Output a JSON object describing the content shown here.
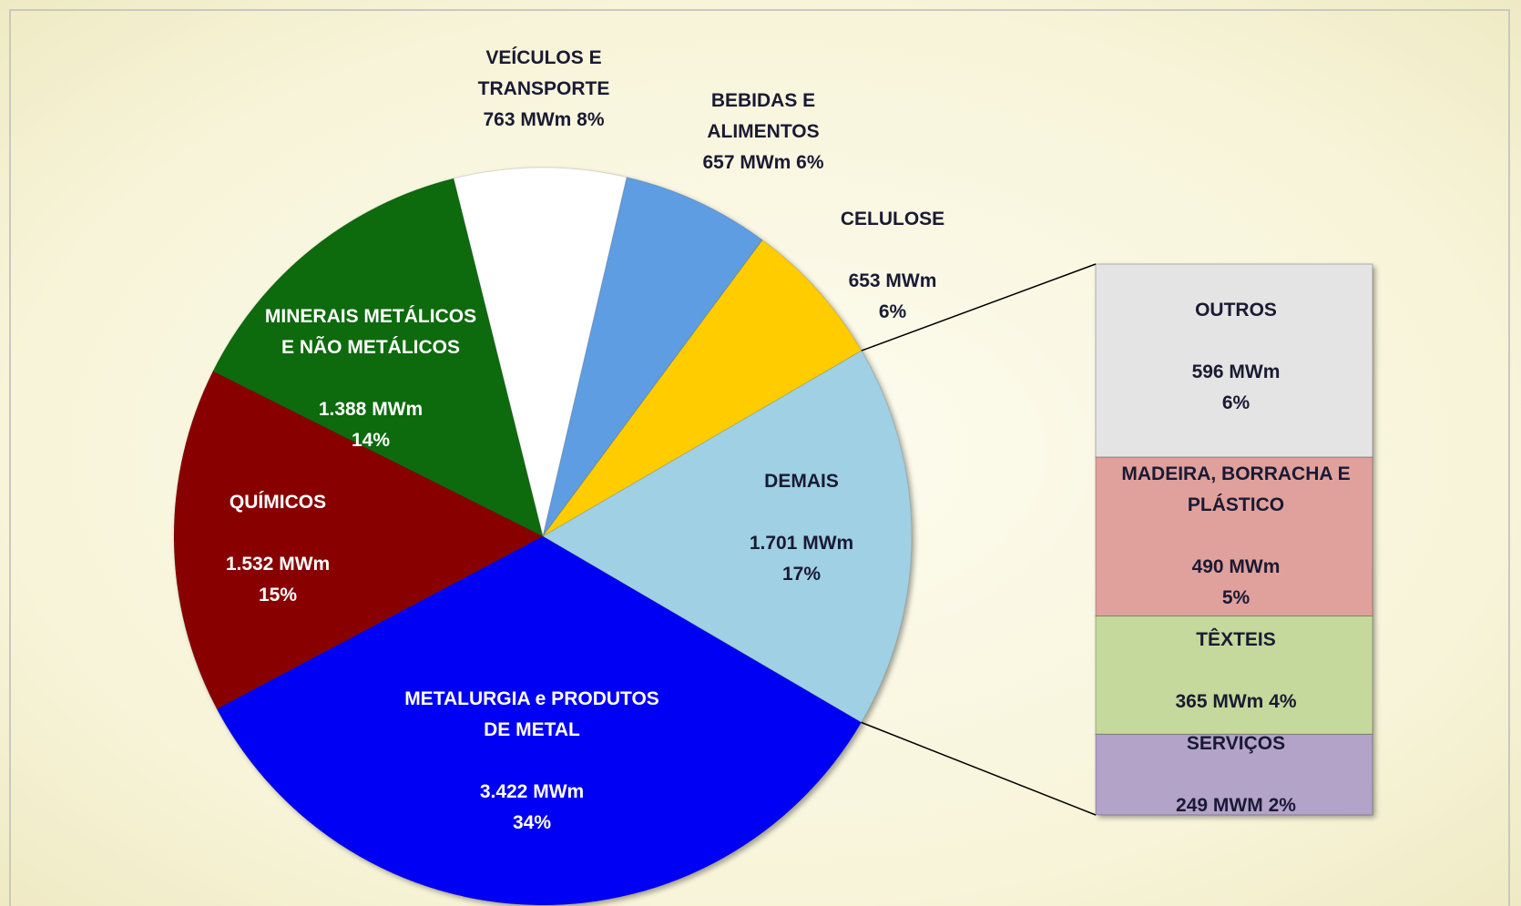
{
  "chart_data": {
    "type": "pie",
    "categories": [
      "VEÍCULOS E TRANSPORTE",
      "BEBIDAS E ALIMENTOS",
      "CELULOSE",
      "DEMAIS",
      "METALURGIA e PRODUTOS DE METAL",
      "QUÍMICOS",
      "MINERAIS METÁLICOS E NÃO METÁLICOS"
    ],
    "values": [
      763,
      657,
      653,
      1701,
      3422,
      1532,
      1388
    ],
    "value_labels": [
      "763 MWm",
      "657 MWm",
      "653 MWm",
      "1.701 MWm",
      "3.422  MWm",
      "1.532 MWm",
      "1.388 MWm"
    ],
    "percents": [
      8,
      6,
      6,
      17,
      34,
      15,
      14
    ],
    "percent_labels": [
      "8%",
      "6%",
      "6%",
      "17%",
      "34%",
      "15%",
      "14%"
    ],
    "colors": [
      "#ffffff",
      "#5f9de2",
      "#ffcc00",
      "#9fd0e3",
      "#0000f4",
      "#880000",
      "#0a6b0a"
    ],
    "label_colors": [
      "#1a1a33",
      "#1a1a33",
      "#1a1a33",
      "#1a1a33",
      "#ffffff",
      "#ffffff",
      "#ffffff"
    ],
    "breakdown": {
      "type": "bar",
      "categories": [
        "OUTROS",
        "MADEIRA, BORRACHA E PLÁSTICO",
        "TÊXTEIS",
        "SERVIÇOS"
      ],
      "values": [
        596,
        490,
        365,
        249
      ],
      "value_labels": [
        "596 MWm",
        "490 MWm",
        "365 MWm ",
        "249 MWM"
      ],
      "percents": [
        6,
        5,
        4,
        2
      ],
      "percent_labels": [
        "6%",
        "5%",
        "4%",
        "2%"
      ],
      "colors": [
        "#e4e4e4",
        "#e0a19d",
        "#c4d99b",
        "#b3a3c9"
      ]
    }
  }
}
